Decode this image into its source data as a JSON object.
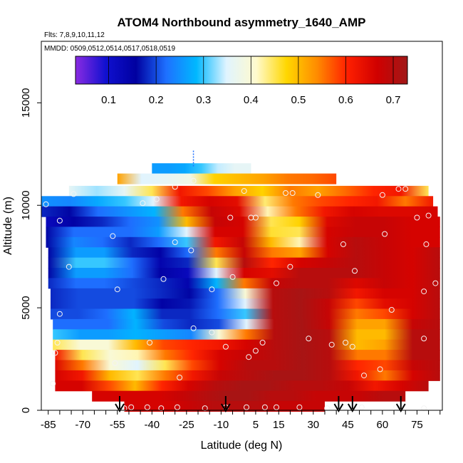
{
  "chart_data": {
    "type": "heatmap",
    "title": "ATOM4 Northbound asymmetry_1640_AMP",
    "subtitle_flights": "Flts: 7,8,9,10,11,12",
    "subtitle_dates": "MMDD: 0509,0512,0514,0517,0518,0519",
    "xlabel": "Latitude (deg N)",
    "ylabel": "Altitude (m)",
    "xlim": [
      -88,
      86
    ],
    "ylim": [
      0,
      18000
    ],
    "x_ticks": [
      -85,
      -70,
      -55,
      -40,
      -25,
      -10,
      5,
      15,
      30,
      45,
      60,
      75
    ],
    "y_ticks": [
      0,
      5000,
      10000,
      15000
    ],
    "colorbar": {
      "range": [
        0.03,
        0.73
      ],
      "ticks": [
        0.1,
        0.2,
        0.3,
        0.4,
        0.5,
        0.6,
        0.7
      ],
      "colors": [
        "#8a2be2",
        "#1010d0",
        "#0000a0",
        "#1e70ff",
        "#00b8ff",
        "#e0f4ff",
        "#fffacd",
        "#ffd700",
        "#ff8c00",
        "#ff2000",
        "#d00000",
        "#a01818"
      ]
    },
    "field_rows": [
      {
        "alt": 11800,
        "lo": -40,
        "hi": 3,
        "v": [
          0.26,
          0.26,
          0.27,
          0.3,
          0.34,
          0.36,
          0.36
        ]
      },
      {
        "alt": 11300,
        "lo": -55,
        "hi": 40,
        "v": [
          0.52,
          0.35,
          0.36,
          0.38,
          0.48,
          0.5,
          0.52,
          0.55,
          0.56,
          0.58
        ]
      },
      {
        "alt": 10700,
        "lo": -76,
        "hi": 80,
        "v": [
          0.36,
          0.33,
          0.36,
          0.45,
          0.62,
          0.58,
          0.52,
          0.48,
          0.55,
          0.52,
          0.56,
          0.6,
          0.62,
          0.45
        ]
      },
      {
        "alt": 10200,
        "lo": -88,
        "hi": 82,
        "v": [
          0.25,
          0.24,
          0.27,
          0.3,
          0.35,
          0.62,
          0.66,
          0.64,
          0.44,
          0.55,
          0.58,
          0.6,
          0.62,
          0.55,
          0.62
        ]
      },
      {
        "alt": 9700,
        "lo": -88,
        "hi": 84,
        "v": [
          0.18,
          0.16,
          0.22,
          0.25,
          0.28,
          0.55,
          0.68,
          0.65,
          0.42,
          0.55,
          0.62,
          0.66,
          0.65,
          0.65,
          0.66
        ]
      },
      {
        "alt": 9200,
        "lo": -86,
        "hi": 85,
        "v": [
          0.12,
          0.15,
          0.18,
          0.22,
          0.25,
          0.5,
          0.68,
          0.66,
          0.45,
          0.48,
          0.65,
          0.68,
          0.68,
          0.66,
          0.66
        ]
      },
      {
        "alt": 8700,
        "lo": -86,
        "hi": 85,
        "v": [
          0.16,
          0.22,
          0.22,
          0.22,
          0.26,
          0.35,
          0.66,
          0.66,
          0.46,
          0.45,
          0.66,
          0.68,
          0.68,
          0.66,
          0.66
        ]
      },
      {
        "alt": 8200,
        "lo": -86,
        "hi": 85,
        "v": [
          0.16,
          0.24,
          0.22,
          0.18,
          0.22,
          0.3,
          0.62,
          0.68,
          0.5,
          0.42,
          0.66,
          0.7,
          0.68,
          0.66,
          0.66
        ]
      },
      {
        "alt": 7700,
        "lo": -85,
        "hi": 85,
        "v": [
          0.16,
          0.26,
          0.26,
          0.18,
          0.15,
          0.22,
          0.55,
          0.68,
          0.55,
          0.52,
          0.66,
          0.7,
          0.68,
          0.66,
          0.7
        ]
      },
      {
        "alt": 7200,
        "lo": -85,
        "hi": 85,
        "v": [
          0.16,
          0.3,
          0.3,
          0.22,
          0.14,
          0.18,
          0.45,
          0.7,
          0.6,
          0.66,
          0.68,
          0.7,
          0.68,
          0.66,
          0.7
        ]
      },
      {
        "alt": 6700,
        "lo": -85,
        "hi": 85,
        "v": [
          0.16,
          0.26,
          0.26,
          0.22,
          0.15,
          0.12,
          0.35,
          0.66,
          0.64,
          0.7,
          0.7,
          0.7,
          0.68,
          0.66,
          0.7
        ]
      },
      {
        "alt": 6200,
        "lo": -85,
        "hi": 85,
        "v": [
          0.18,
          0.22,
          0.22,
          0.2,
          0.18,
          0.14,
          0.28,
          0.55,
          0.68,
          0.7,
          0.7,
          0.65,
          0.68,
          0.66,
          0.7
        ]
      },
      {
        "alt": 5700,
        "lo": -84,
        "hi": 85,
        "v": [
          0.18,
          0.2,
          0.2,
          0.2,
          0.18,
          0.16,
          0.22,
          0.4,
          0.7,
          0.72,
          0.7,
          0.62,
          0.66,
          0.66,
          0.7
        ]
      },
      {
        "alt": 5200,
        "lo": -84,
        "hi": 85,
        "v": [
          0.18,
          0.2,
          0.2,
          0.2,
          0.15,
          0.17,
          0.22,
          0.35,
          0.7,
          0.72,
          0.68,
          0.58,
          0.64,
          0.66,
          0.7
        ]
      },
      {
        "alt": 4700,
        "lo": -84,
        "hi": 85,
        "v": [
          0.2,
          0.2,
          0.22,
          0.28,
          0.18,
          0.18,
          0.22,
          0.3,
          0.7,
          0.72,
          0.68,
          0.55,
          0.58,
          0.66,
          0.7
        ]
      },
      {
        "alt": 4200,
        "lo": -83,
        "hi": 85,
        "v": [
          0.22,
          0.22,
          0.22,
          0.28,
          0.2,
          0.18,
          0.2,
          0.35,
          0.7,
          0.72,
          0.68,
          0.52,
          0.52,
          0.68,
          0.7
        ]
      },
      {
        "alt": 3700,
        "lo": -83,
        "hi": 85,
        "v": [
          0.3,
          0.26,
          0.26,
          0.28,
          0.26,
          0.24,
          0.4,
          0.55,
          0.7,
          0.72,
          0.7,
          0.5,
          0.5,
          0.7,
          0.7
        ]
      },
      {
        "alt": 3200,
        "lo": -83,
        "hi": 85,
        "v": [
          0.45,
          0.4,
          0.4,
          0.5,
          0.58,
          0.6,
          0.62,
          0.66,
          0.7,
          0.72,
          0.7,
          0.5,
          0.52,
          0.7,
          0.7
        ]
      },
      {
        "alt": 2700,
        "lo": -82,
        "hi": 85,
        "v": [
          0.62,
          0.45,
          0.4,
          0.42,
          0.55,
          0.6,
          0.66,
          0.68,
          0.7,
          0.72,
          0.7,
          0.55,
          0.55,
          0.7,
          0.7
        ]
      },
      {
        "alt": 2200,
        "lo": -82,
        "hi": 85,
        "v": [
          0.65,
          0.55,
          0.4,
          0.35,
          0.45,
          0.58,
          0.66,
          0.7,
          0.7,
          0.72,
          0.7,
          0.6,
          0.58,
          0.68,
          0.7
        ]
      },
      {
        "alt": 1700,
        "lo": -82,
        "hi": 85,
        "v": [
          0.66,
          0.62,
          0.5,
          0.45,
          0.55,
          0.62,
          0.68,
          0.7,
          0.72,
          0.72,
          0.7,
          0.62,
          0.55,
          0.66,
          0.7
        ]
      },
      {
        "alt": 1200,
        "lo": -82,
        "hi": 80,
        "v": [
          0.66,
          0.66,
          0.58,
          0.5,
          0.6,
          0.66,
          0.7,
          0.72,
          0.72,
          0.7,
          0.7,
          0.68,
          0.62,
          0.66,
          0.7
        ]
      },
      {
        "alt": 700,
        "lo": -66,
        "hi": 70,
        "v": [
          0.66,
          0.66,
          0.66,
          0.66,
          0.68,
          0.7,
          0.72,
          0.72,
          0.7,
          0.7,
          0.68,
          0.68,
          0.68,
          0.7,
          0.7
        ]
      },
      {
        "alt": 200,
        "lo": -52,
        "hi": 35,
        "v": [
          0.66,
          0.66,
          0.66,
          0.68,
          0.7,
          0.7,
          0.7,
          0.68,
          0.68,
          0.68
        ]
      }
    ],
    "sample_points": [
      [
        -86,
        10050
      ],
      [
        -80,
        9250
      ],
      [
        -74,
        10550
      ],
      [
        -76,
        7000
      ],
      [
        -80,
        4700
      ],
      [
        -81,
        3300
      ],
      [
        -82,
        2800
      ],
      [
        -83,
        1300
      ],
      [
        -57,
        8500
      ],
      [
        -55,
        5900
      ],
      [
        -56,
        2300
      ],
      [
        -44,
        10100
      ],
      [
        -41,
        3300
      ],
      [
        -38,
        10300
      ],
      [
        -35,
        6400
      ],
      [
        -30,
        10900
      ],
      [
        -30,
        8200
      ],
      [
        -28,
        1600
      ],
      [
        -22,
        11200
      ],
      [
        -23,
        7800
      ],
      [
        -22,
        4000
      ],
      [
        -14,
        5900
      ],
      [
        -14,
        3800
      ],
      [
        -6,
        9400
      ],
      [
        -5,
        6500
      ],
      [
        -8,
        3100
      ],
      [
        0,
        10700
      ],
      [
        3,
        9400
      ],
      [
        5,
        9400
      ],
      [
        2,
        2600
      ],
      [
        5,
        2900
      ],
      [
        8,
        3300
      ],
      [
        14,
        6200
      ],
      [
        18,
        10600
      ],
      [
        20,
        7000
      ],
      [
        21,
        10600
      ],
      [
        28,
        3500
      ],
      [
        32,
        10500
      ],
      [
        38,
        3200
      ],
      [
        43,
        8100
      ],
      [
        44,
        3300
      ],
      [
        47,
        3100
      ],
      [
        48,
        6800
      ],
      [
        52,
        1700
      ],
      [
        59,
        2000
      ],
      [
        61,
        8600
      ],
      [
        64,
        4900
      ],
      [
        67,
        10800
      ],
      [
        70,
        10800
      ],
      [
        75,
        9400
      ],
      [
        78,
        5800
      ],
      [
        78,
        3500
      ],
      [
        79,
        8100
      ],
      [
        80,
        9500
      ],
      [
        83,
        6200
      ],
      [
        60,
        10500
      ],
      [
        -52,
        100
      ],
      [
        -49,
        150
      ],
      [
        -42,
        150
      ],
      [
        -36,
        100
      ],
      [
        -29,
        150
      ],
      [
        -17,
        100
      ],
      [
        -8,
        150
      ],
      [
        1,
        150
      ],
      [
        9,
        150
      ],
      [
        14,
        150
      ],
      [
        24,
        150
      ],
      [
        36,
        100
      ],
      [
        44,
        150
      ],
      [
        51,
        150
      ],
      [
        66,
        150
      ],
      [
        78,
        100
      ]
    ],
    "arrows_latitude": [
      -54,
      -8,
      41,
      47,
      68
    ],
    "dashed_marker": {
      "x": -22,
      "y_range": [
        11900,
        12700
      ]
    }
  }
}
